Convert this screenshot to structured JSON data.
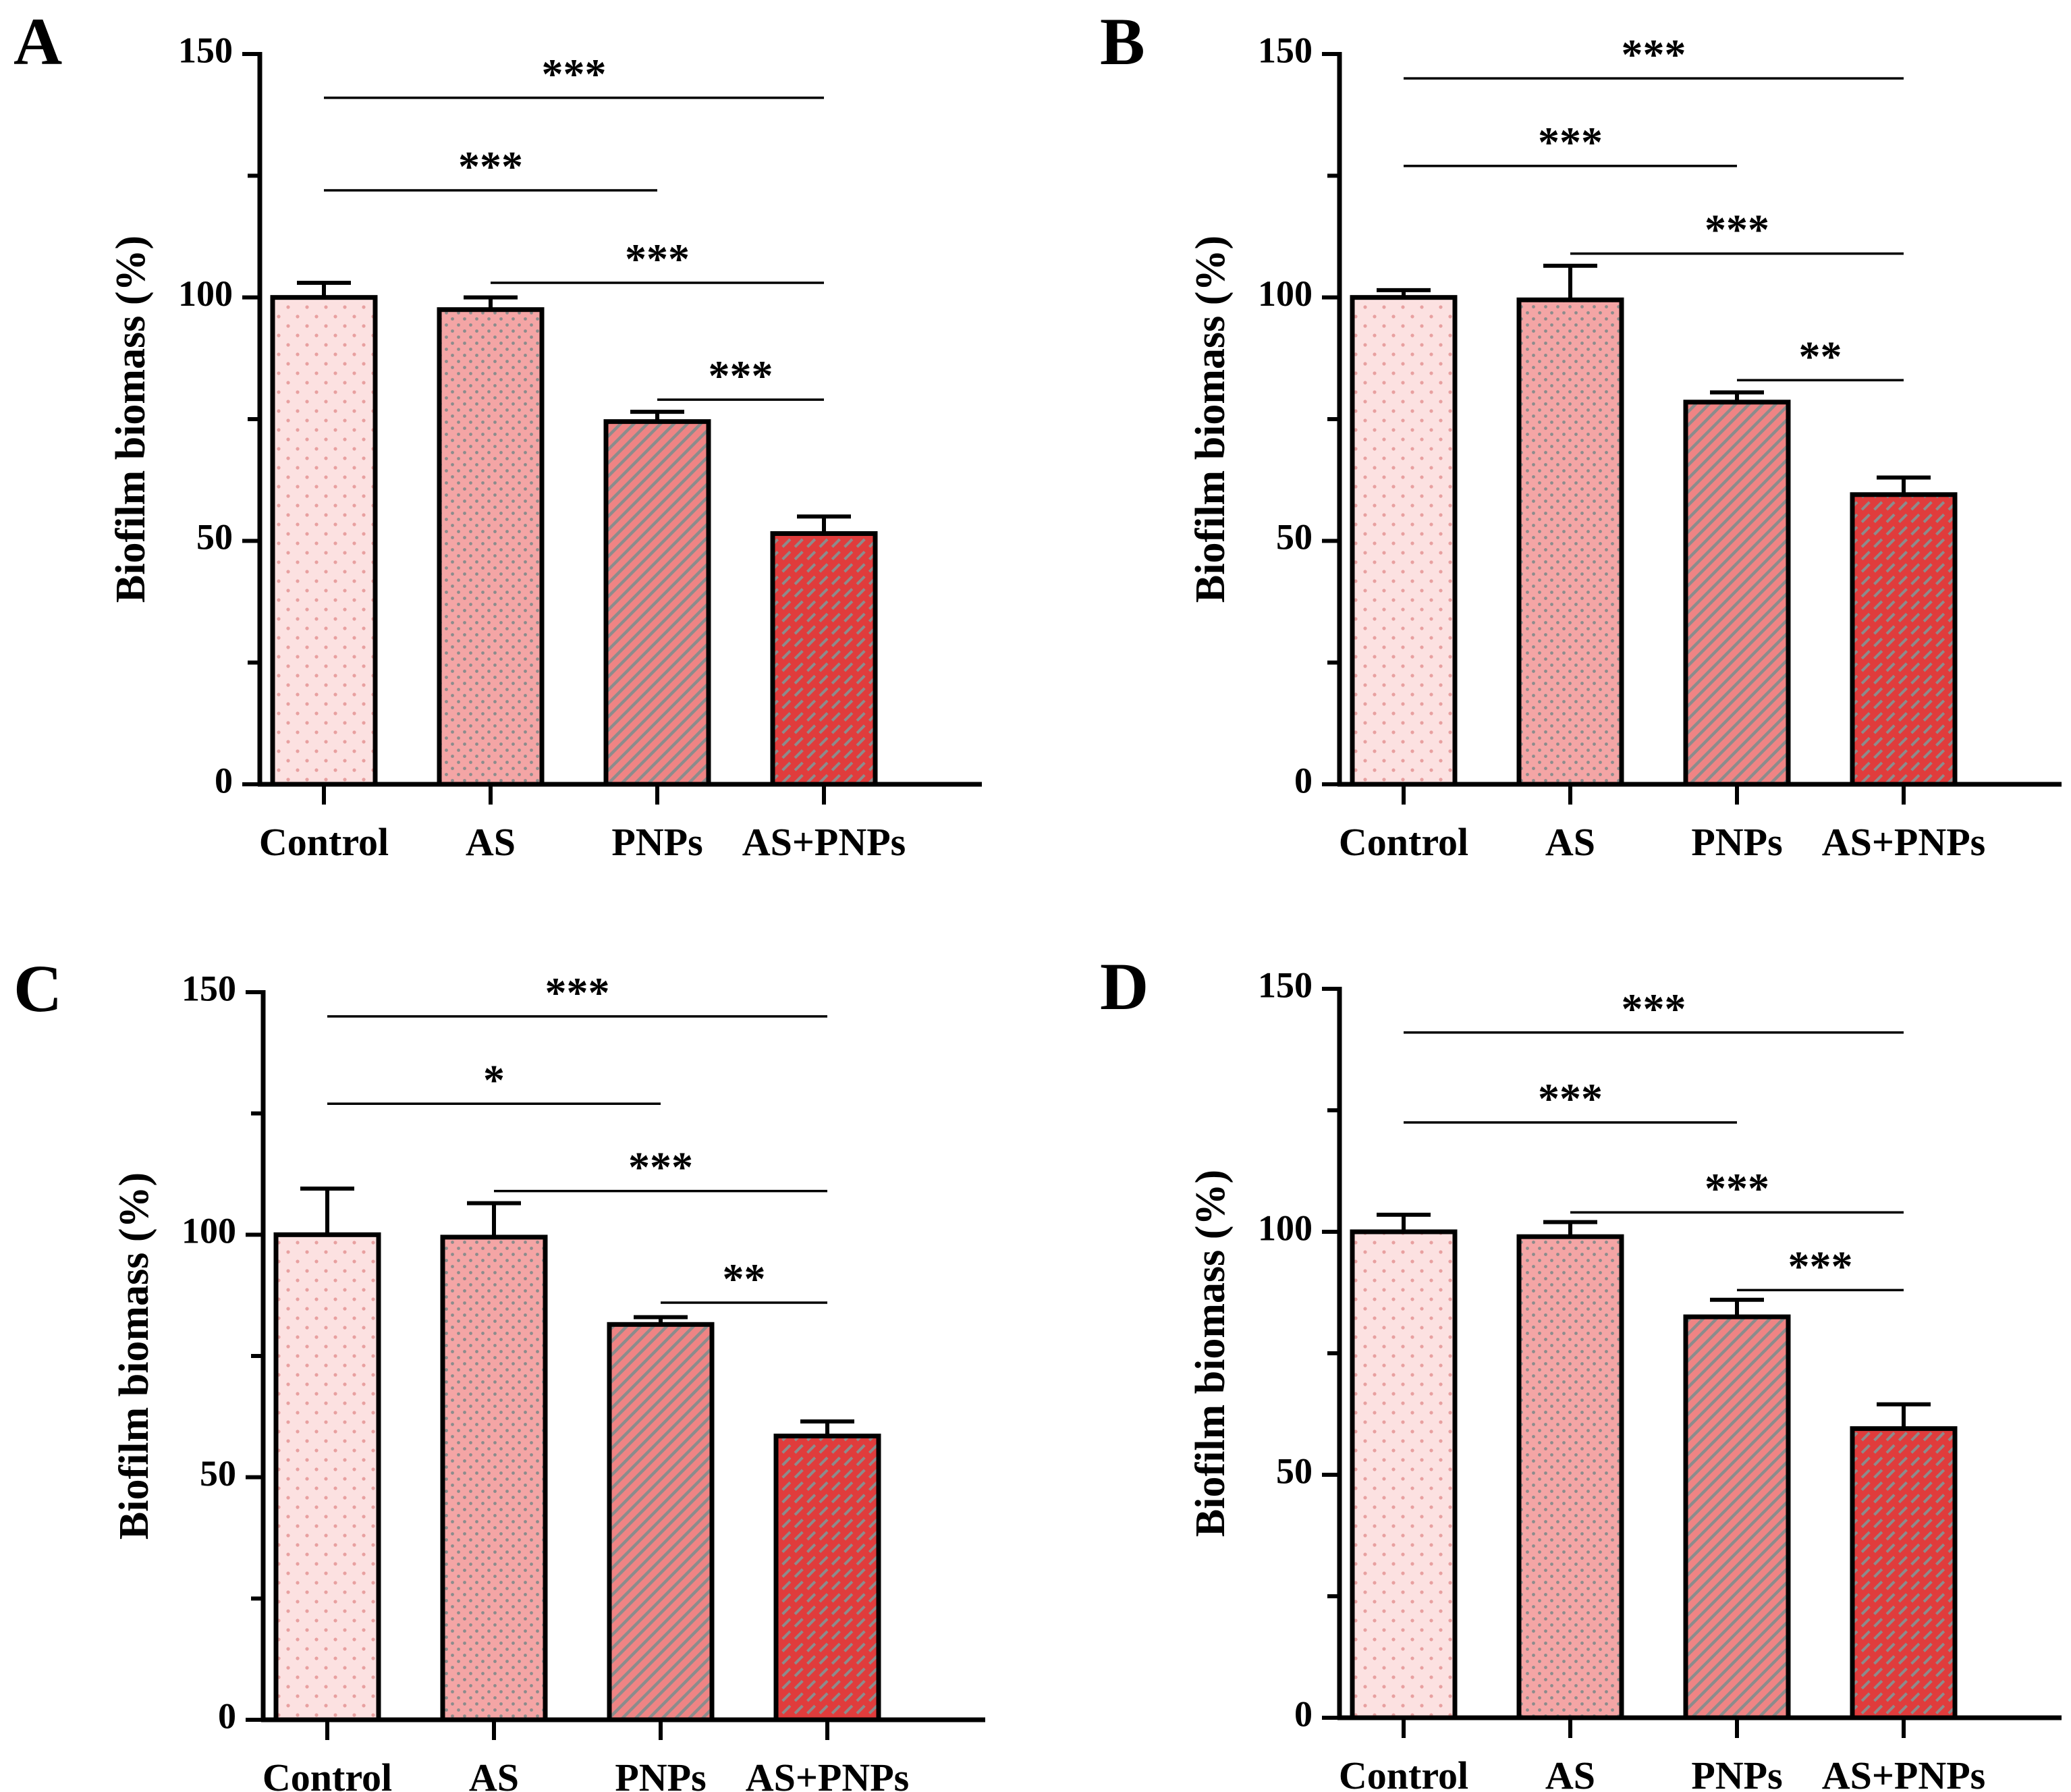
{
  "figure": {
    "description_panels": [
      "A",
      "B",
      "C",
      "D"
    ]
  },
  "colors": {
    "control_bg": "#FCE1E1",
    "control_dot": "#E8A0A0",
    "as_bg": "#F4A5A5",
    "as_dot": "#8C8C8C",
    "pnps_bg": "#EF8484",
    "pnps_line": "#8C8C8C",
    "aspnps_bg": "#E03C3C",
    "aspnps_line": "#8C8C8C",
    "axis": "#000000"
  },
  "chart_data": [
    {
      "panel": "A",
      "type": "bar",
      "ylabel": "Biofilm biomass (%)",
      "ylim": [
        0,
        150
      ],
      "yticks": [
        0,
        50,
        100,
        150
      ],
      "categories": [
        "Control",
        "AS",
        "PNPs",
        "AS+PNPs"
      ],
      "values": [
        100,
        97.5,
        74.5,
        51.5
      ],
      "errors": [
        3,
        2.5,
        2,
        3.5
      ],
      "significance": [
        {
          "from": 0,
          "to": 3,
          "y": 141,
          "label": "***"
        },
        {
          "from": 0,
          "to": 2,
          "y": 122,
          "label": "***"
        },
        {
          "from": 1,
          "to": 3,
          "y": 103,
          "label": "***"
        },
        {
          "from": 2,
          "to": 3,
          "y": 79,
          "label": "***"
        }
      ]
    },
    {
      "panel": "B",
      "type": "bar",
      "ylabel": "Biofilm biomass (%)",
      "ylim": [
        0,
        150
      ],
      "yticks": [
        0,
        50,
        100,
        150
      ],
      "categories": [
        "Control",
        "AS",
        "PNPs",
        "AS+PNPs"
      ],
      "values": [
        100,
        99.5,
        78.5,
        59.5
      ],
      "errors": [
        1.5,
        7,
        2,
        3.5
      ],
      "significance": [
        {
          "from": 0,
          "to": 3,
          "y": 145,
          "label": "***"
        },
        {
          "from": 0,
          "to": 2,
          "y": 127,
          "label": "***"
        },
        {
          "from": 1,
          "to": 3,
          "y": 109,
          "label": "***"
        },
        {
          "from": 2,
          "to": 3,
          "y": 83,
          "label": "**"
        }
      ]
    },
    {
      "panel": "C",
      "type": "bar",
      "ylabel": "Biofilm biomass (%)",
      "ylim": [
        0,
        150
      ],
      "yticks": [
        0,
        50,
        100,
        150
      ],
      "categories": [
        "Control",
        "AS",
        "PNPs",
        "AS+PNPs"
      ],
      "values": [
        100,
        99.5,
        81.5,
        58.5
      ],
      "errors": [
        9.5,
        7,
        1.5,
        3
      ],
      "significance": [
        {
          "from": 0,
          "to": 3,
          "y": 145,
          "label": "***"
        },
        {
          "from": 0,
          "to": 2,
          "y": 127,
          "label": "*"
        },
        {
          "from": 1,
          "to": 3,
          "y": 109,
          "label": "***"
        },
        {
          "from": 2,
          "to": 3,
          "y": 86,
          "label": "**"
        }
      ]
    },
    {
      "panel": "D",
      "type": "bar",
      "ylabel": "Biofilm biomass (%)",
      "ylim": [
        0,
        150
      ],
      "yticks": [
        0,
        50,
        100,
        150
      ],
      "categories": [
        "Control",
        "AS",
        "PNPs",
        "AS+PNPs"
      ],
      "values": [
        100,
        99,
        82.5,
        59.5
      ],
      "errors": [
        3.5,
        3,
        3.5,
        5
      ],
      "significance": [
        {
          "from": 0,
          "to": 3,
          "y": 141,
          "label": "***"
        },
        {
          "from": 0,
          "to": 2,
          "y": 122.5,
          "label": "***"
        },
        {
          "from": 1,
          "to": 3,
          "y": 104,
          "label": "***"
        },
        {
          "from": 2,
          "to": 3,
          "y": 88,
          "label": "***"
        }
      ]
    }
  ]
}
